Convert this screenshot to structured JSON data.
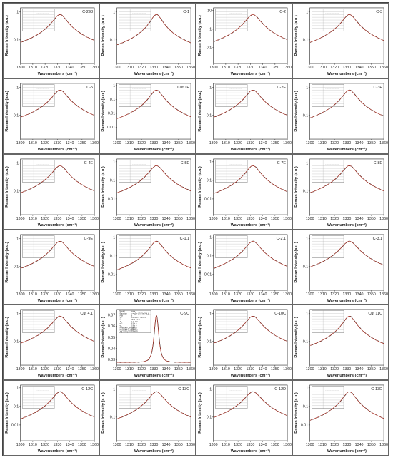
{
  "layout": {
    "columns": 4,
    "rows": 6
  },
  "legend_color_line": "#c0392b",
  "legend_color_data": "#222222",
  "chart_data": [
    {
      "type": "line",
      "panel_label": "C-298",
      "xlabel": "Wavenumbers (cm⁻¹)",
      "ylabel": "Raman Intensity (a.u.)",
      "xlim": [
        1300,
        1360
      ],
      "xticks": [
        1300,
        1310,
        1320,
        1330,
        1340,
        1350,
        1360
      ],
      "yticks": [
        "1",
        "0.1"
      ],
      "yscale": "log",
      "peak_x": 1332,
      "fwhm": 9.5
    },
    {
      "type": "line",
      "panel_label": "C-1",
      "xlabel": "Wavenumbers (cm⁻¹)",
      "ylabel": "Raman Intensity (a.u.)",
      "xlim": [
        1300,
        1360
      ],
      "xticks": [
        1300,
        1310,
        1320,
        1330,
        1340,
        1350,
        1360
      ],
      "yticks": [
        "1",
        "0.1"
      ],
      "yscale": "log",
      "peak_x": 1332,
      "fwhm": 8.0
    },
    {
      "type": "line",
      "panel_label": "C-2",
      "xlabel": "Wavenumbers (cm⁻¹)",
      "ylabel": "Raman Intensity (a.u.)",
      "xlim": [
        1300,
        1360
      ],
      "xticks": [
        1300,
        1310,
        1320,
        1330,
        1340,
        1350,
        1360
      ],
      "yticks": [
        "10",
        "1",
        "0.1"
      ],
      "yscale": "log",
      "peak_x": 1332,
      "fwhm": 10
    },
    {
      "type": "line",
      "panel_label": "C-3",
      "xlabel": "Wavenumbers (cm⁻¹)",
      "ylabel": "Raman Intensity (a.u.)",
      "xlim": [
        1300,
        1360
      ],
      "xticks": [
        1300,
        1310,
        1320,
        1330,
        1340,
        1350,
        1360
      ],
      "yticks": [
        "1",
        "0.1"
      ],
      "yscale": "log",
      "peak_x": 1332,
      "fwhm": 9.5
    },
    {
      "type": "line",
      "panel_label": "C-5",
      "xlabel": "Wavenumbers (cm⁻¹)",
      "ylabel": "Raman Intensity (a.u.)",
      "xlim": [
        1300,
        1360
      ],
      "xticks": [
        1300,
        1310,
        1320,
        1330,
        1340,
        1350,
        1360
      ],
      "yticks": [
        "1",
        "0.1"
      ],
      "yscale": "log",
      "peak_x": 1332,
      "fwhm": 10
    },
    {
      "type": "line",
      "panel_label": "Cut 1E",
      "xlabel": "Wavenumbers (cm⁻¹)",
      "ylabel": "Raman Intensity (a.u.)",
      "xlim": [
        1300,
        1360
      ],
      "xticks": [
        1300,
        1310,
        1320,
        1330,
        1340,
        1350,
        1360
      ],
      "yticks": [
        "1",
        "0.1",
        "0.01",
        "0.001"
      ],
      "yscale": "log",
      "peak_x": 1332,
      "fwhm": 9
    },
    {
      "type": "line",
      "panel_label": "C-2E",
      "xlabel": "Wavenumbers (cm⁻¹)",
      "ylabel": "Raman Intensity (a.u.)",
      "xlim": [
        1300,
        1360
      ],
      "xticks": [
        1300,
        1310,
        1320,
        1330,
        1340,
        1350,
        1360
      ],
      "yticks": [
        "1",
        "0.1"
      ],
      "yscale": "log",
      "peak_x": 1332,
      "fwhm": 10
    },
    {
      "type": "line",
      "panel_label": "C-3E",
      "xlabel": "Wavenumbers (cm⁻¹)",
      "ylabel": "Raman Intensity (a.u.)",
      "xlim": [
        1300,
        1360
      ],
      "xticks": [
        1300,
        1310,
        1320,
        1330,
        1340,
        1350,
        1360
      ],
      "yticks": [
        "1",
        "0.1"
      ],
      "yscale": "log",
      "peak_x": 1332,
      "fwhm": 9.5
    },
    {
      "type": "line",
      "panel_label": "C-4E",
      "xlabel": "Wavenumbers (cm⁻¹)",
      "ylabel": "Raman Intensity (a.u.)",
      "xlim": [
        1300,
        1360
      ],
      "xticks": [
        1300,
        1310,
        1320,
        1330,
        1340,
        1350,
        1360
      ],
      "yticks": [
        "1",
        "0.1"
      ],
      "yscale": "log",
      "peak_x": 1332,
      "fwhm": 10
    },
    {
      "type": "line",
      "panel_label": "C-5E",
      "xlabel": "Wavenumbers (cm⁻¹)",
      "ylabel": "Raman Intensity (a.u.)",
      "xlim": [
        1300,
        1360
      ],
      "xticks": [
        1300,
        1310,
        1320,
        1330,
        1340,
        1350,
        1360
      ],
      "yticks": [
        "1",
        "0.1",
        "0.01"
      ],
      "yscale": "log",
      "peak_x": 1332,
      "fwhm": 10
    },
    {
      "type": "line",
      "panel_label": "C-7E",
      "xlabel": "Wavenumbers (cm⁻¹)",
      "ylabel": "Raman Intensity (a.u.)",
      "xlim": [
        1300,
        1360
      ],
      "xticks": [
        1300,
        1310,
        1320,
        1330,
        1340,
        1350,
        1360
      ],
      "yticks": [
        "1",
        "0.1",
        "0.01"
      ],
      "yscale": "log",
      "peak_x": 1332,
      "fwhm": 9.5
    },
    {
      "type": "line",
      "panel_label": "C-8E",
      "xlabel": "Wavenumbers (cm⁻¹)",
      "ylabel": "Raman Intensity (a.u.)",
      "xlim": [
        1300,
        1360
      ],
      "xticks": [
        1300,
        1310,
        1320,
        1330,
        1340,
        1350,
        1360
      ],
      "yticks": [
        "1",
        "0.1"
      ],
      "yscale": "log",
      "peak_x": 1332,
      "fwhm": 10
    },
    {
      "type": "line",
      "panel_label": "C-9E",
      "xlabel": "Wavenumbers (cm⁻¹)",
      "ylabel": "Raman Intensity (a.u.)",
      "xlim": [
        1300,
        1360
      ],
      "xticks": [
        1300,
        1310,
        1320,
        1330,
        1340,
        1350,
        1360
      ],
      "yticks": [
        "1",
        "0.1"
      ],
      "yscale": "log",
      "peak_x": 1332,
      "fwhm": 10
    },
    {
      "type": "line",
      "panel_label": "C-1.1",
      "xlabel": "Wavenumbers (cm⁻¹)",
      "ylabel": "Raman Intensity (a.u.)",
      "xlim": [
        1300,
        1360
      ],
      "xticks": [
        1300,
        1310,
        1320,
        1330,
        1340,
        1350,
        1360
      ],
      "yticks": [
        "1",
        "0.1",
        "0.01"
      ],
      "yscale": "log",
      "peak_x": 1332,
      "fwhm": 9
    },
    {
      "type": "line",
      "panel_label": "C-2.1",
      "xlabel": "Wavenumbers (cm⁻¹)",
      "ylabel": "Raman Intensity (a.u.)",
      "xlim": [
        1300,
        1360
      ],
      "xticks": [
        1300,
        1310,
        1320,
        1330,
        1340,
        1350,
        1360
      ],
      "yticks": [
        "1",
        "0.1",
        "0.01"
      ],
      "yscale": "log",
      "peak_x": 1332,
      "fwhm": 10
    },
    {
      "type": "line",
      "panel_label": "C-3.1",
      "xlabel": "Wavenumbers (cm⁻¹)",
      "ylabel": "Raman Intensity (a.u.)",
      "xlim": [
        1300,
        1360
      ],
      "xticks": [
        1300,
        1310,
        1320,
        1330,
        1340,
        1350,
        1360
      ],
      "yticks": [
        "1",
        "0.1"
      ],
      "yscale": "log",
      "peak_x": 1332,
      "fwhm": 11
    },
    {
      "type": "line",
      "panel_label": "Cut 4.1",
      "xlabel": "Wavenumbers (cm⁻¹)",
      "ylabel": "Raman Intensity (a.u.)",
      "xlim": [
        1300,
        1360
      ],
      "xticks": [
        1300,
        1310,
        1320,
        1330,
        1340,
        1350,
        1360
      ],
      "yticks": [
        "1",
        "0.1"
      ],
      "yscale": "log",
      "peak_x": 1332,
      "fwhm": 10
    },
    {
      "type": "line",
      "panel_label": "C-9C",
      "xlabel": "Wavenumbers (cm⁻¹)",
      "ylabel": "Raman Intensity (a.u.)",
      "xlim": [
        1300,
        1360
      ],
      "xticks": [
        1300,
        1310,
        1320,
        1330,
        1340,
        1350,
        1360
      ],
      "yticks": [
        "0.07",
        "0.06",
        "0.05",
        "0.04",
        "0.03"
      ],
      "yscale": "linear",
      "ylim": [
        0.025,
        0.075
      ],
      "peak_x": 1332,
      "fwhm": 6,
      "fit_table": {
        "model": "Voigt",
        "rows": [
          [
            "Model",
            "Voigt"
          ],
          [
            "Equation",
            "y = y0 + (2*A*ln2*wL)/..."
          ],
          [
            "Plot",
            "B"
          ],
          [
            "y0",
            "0.02481 ± 7.47E-6"
          ],
          [
            "xc",
            "1332.0 ± 0"
          ],
          [
            "A",
            "0.11 ± 0"
          ],
          [
            "wG",
            "3.5 ± 0"
          ],
          [
            "wL",
            "2.9 ± 0"
          ],
          [
            "Reduced Chi-Sqr",
            "1.38E-7"
          ],
          [
            "R-Square (COD)",
            "0.99962"
          ],
          [
            "Adj. R-Square",
            "0.99960"
          ]
        ]
      }
    },
    {
      "type": "line",
      "panel_label": "C-10C",
      "xlabel": "Wavenumbers (cm⁻¹)",
      "ylabel": "Raman Intensity (a.u.)",
      "xlim": [
        1300,
        1360
      ],
      "xticks": [
        1300,
        1310,
        1320,
        1330,
        1340,
        1350,
        1360
      ],
      "yticks": [
        "1",
        "0.1"
      ],
      "yscale": "log",
      "peak_x": 1332,
      "fwhm": 10
    },
    {
      "type": "line",
      "panel_label": "Cut 11C",
      "xlabel": "Wavenumbers (cm⁻¹)",
      "ylabel": "Raman Intensity (a.u.)",
      "xlim": [
        1300,
        1360
      ],
      "xticks": [
        1300,
        1310,
        1320,
        1330,
        1340,
        1350,
        1360
      ],
      "yticks": [
        "1",
        "0.1"
      ],
      "yscale": "log",
      "peak_x": 1332,
      "fwhm": 8.5
    },
    {
      "type": "line",
      "panel_label": "C-12C",
      "xlabel": "Wavenumbers (cm⁻¹)",
      "ylabel": "Raman Intensity (a.u.)",
      "xlim": [
        1300,
        1360
      ],
      "xticks": [
        1300,
        1310,
        1320,
        1330,
        1340,
        1350,
        1360
      ],
      "yticks": [
        "1",
        "0.1",
        "0.01"
      ],
      "yscale": "log",
      "peak_x": 1332,
      "fwhm": 10
    },
    {
      "type": "line",
      "panel_label": "C-13C",
      "xlabel": "Wavenumbers (cm⁻¹)",
      "ylabel": "Raman Intensity (a.u.)",
      "xlim": [
        1300,
        1360
      ],
      "xticks": [
        1300,
        1310,
        1320,
        1330,
        1340,
        1350,
        1360
      ],
      "yticks": [
        "1",
        "0.1"
      ],
      "yscale": "log",
      "peak_x": 1332,
      "fwhm": 10
    },
    {
      "type": "line",
      "panel_label": "C-12D",
      "xlabel": "Wavenumbers (cm⁻¹)",
      "ylabel": "Raman Intensity (a.u.)",
      "xlim": [
        1300,
        1360
      ],
      "xticks": [
        1300,
        1310,
        1320,
        1330,
        1340,
        1350,
        1360
      ],
      "yticks": [
        "1",
        "0.1"
      ],
      "yscale": "log",
      "peak_x": 1332,
      "fwhm": 11
    },
    {
      "type": "line",
      "panel_label": "C-13D",
      "xlabel": "Wavenumbers (cm⁻¹)",
      "ylabel": "Raman Intensity (a.u.)",
      "xlim": [
        1300,
        1360
      ],
      "xticks": [
        1300,
        1310,
        1320,
        1330,
        1340,
        1350,
        1360
      ],
      "yticks": [
        "1",
        "0.1",
        "0.01"
      ],
      "yscale": "log",
      "peak_x": 1332,
      "fwhm": 9
    }
  ]
}
